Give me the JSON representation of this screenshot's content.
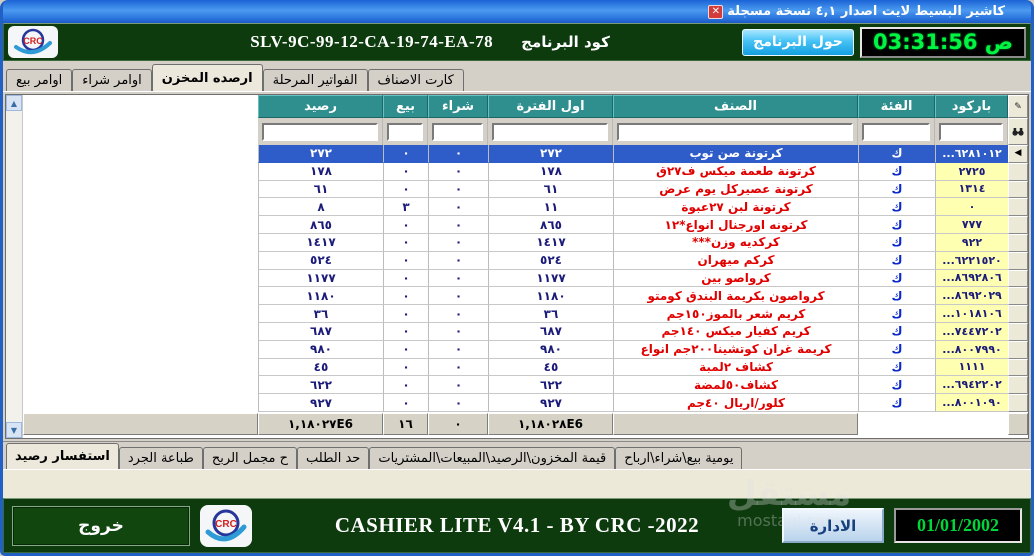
{
  "colors": {
    "titlebar_blue": "#2a74dc",
    "header_green": "#0d3b0e",
    "column_teal": "#2f8e8e",
    "selected_row_blue": "#2e5cc8",
    "item_text_red": "#e00000",
    "number_text_navy": "#1b1b7a",
    "barcode_cell_yellow": "#ffffb2",
    "clock_green": "#00f542",
    "date_green": "#00d53a"
  },
  "window": {
    "title": "كاشير البسيط لايت اصدار ٤,١  نسخة مسجلة",
    "close_icon": "✕"
  },
  "header": {
    "logo_text": "CRC",
    "code_value": "SLV-9C-99-12-CA-19-74-EA-78",
    "code_label": "كود البرنامج",
    "about_button": "حول البرنامج",
    "clock": "03:31:56 ص"
  },
  "tabs": {
    "items": [
      "اوامر بيع",
      "اوامر شراء",
      "ارصده المخزن",
      "الفواتير المرحلة",
      "كارت الاصناف"
    ],
    "active": "ارصده المخزن"
  },
  "grid": {
    "columns": [
      "باركود",
      "الفئة",
      "الصنف",
      "اول الفترة",
      "شراء",
      "بيع",
      "رصيد"
    ],
    "current_row_arrow": "◀",
    "rows": [
      {
        "barcode": "...٦٢٨١٠١٢",
        "category": "ك",
        "item": "كرتونة صن توب",
        "opening": "٢٧٢",
        "purchase": "٠",
        "sale": "٠",
        "balance": "٢٧٢",
        "selected": true
      },
      {
        "barcode": "٢٧٢٥",
        "category": "ك",
        "item": "كرتونة طعمة ميكس ف٢٧ق",
        "opening": "١٧٨",
        "purchase": "٠",
        "sale": "٠",
        "balance": "١٧٨",
        "selected": false
      },
      {
        "barcode": "١٣١٤",
        "category": "ك",
        "item": "كرتونة عصيركل يوم عرض",
        "opening": "٦١",
        "purchase": "٠",
        "sale": "٠",
        "balance": "٦١",
        "selected": false
      },
      {
        "barcode": "٠",
        "category": "ك",
        "item": "كرتونة لبن ٢٧عبوة",
        "opening": "١١",
        "purchase": "٠",
        "sale": "٣",
        "balance": "٨",
        "selected": false
      },
      {
        "barcode": "٧٧٧",
        "category": "ك",
        "item": "كرتونه اورجنال انواع*١٢",
        "opening": "٨٦٥",
        "purchase": "٠",
        "sale": "٠",
        "balance": "٨٦٥",
        "selected": false
      },
      {
        "barcode": "٩٢٢",
        "category": "ك",
        "item": "كركديه وزن***",
        "opening": "١٤١٧",
        "purchase": "٠",
        "sale": "٠",
        "balance": "١٤١٧",
        "selected": false
      },
      {
        "barcode": "...٦٢٢١٥٢٠",
        "category": "ك",
        "item": "كركم ميهران",
        "opening": "٥٢٤",
        "purchase": "٠",
        "sale": "٠",
        "balance": "٥٢٤",
        "selected": false
      },
      {
        "barcode": "...٨٦٩٢٨٠٦",
        "category": "ك",
        "item": "كرواصو بين",
        "opening": "١١٧٧",
        "purchase": "٠",
        "sale": "٠",
        "balance": "١١٧٧",
        "selected": false
      },
      {
        "barcode": "...٨٦٩٢٠٢٩",
        "category": "ك",
        "item": "كرواصون بكريمة البندق كومتو",
        "opening": "١١٨٠",
        "purchase": "٠",
        "sale": "٠",
        "balance": "١١٨٠",
        "selected": false
      },
      {
        "barcode": "...١٠١٨١٠٦",
        "category": "ك",
        "item": "كريم شعر بالموز١٥٠جم",
        "opening": "٣٦",
        "purchase": "٠",
        "sale": "٠",
        "balance": "٣٦",
        "selected": false
      },
      {
        "barcode": "...٧٤٤٧٢٠٢",
        "category": "ك",
        "item": "كريم كفيار ميكس ١٤٠جم",
        "opening": "٦٨٧",
        "purchase": "٠",
        "sale": "٠",
        "balance": "٦٨٧",
        "selected": false
      },
      {
        "barcode": "...٨٠٠٧٩٩٠",
        "category": "ك",
        "item": "كريمة غران كوتشينا٢٠٠جم انواع",
        "opening": "٩٨٠",
        "purchase": "٠",
        "sale": "٠",
        "balance": "٩٨٠",
        "selected": false
      },
      {
        "barcode": "١١١١",
        "category": "ك",
        "item": "كشاف ٢لمبة",
        "opening": "٤٥",
        "purchase": "٠",
        "sale": "٠",
        "balance": "٤٥",
        "selected": false
      },
      {
        "barcode": "...٦٩٤٢٢٠٢",
        "category": "ك",
        "item": "كشاف٥٠لمضة",
        "opening": "٦٢٢",
        "purchase": "٠",
        "sale": "٠",
        "balance": "٦٢٢",
        "selected": false
      },
      {
        "barcode": "...٨٠٠١٠٩٠",
        "category": "ك",
        "item": "كلور/اريال ٤٠جم",
        "opening": "٩٢٧",
        "purchase": "٠",
        "sale": "٠",
        "balance": "٩٢٧",
        "selected": false
      }
    ],
    "totals": {
      "opening": "١,١٨٠٢٨E6",
      "purchase": "٠",
      "sale": "١٦",
      "balance": "١,١٨٠٢٧E6"
    }
  },
  "bottom_tabs": {
    "items": [
      "استفسار رصيد",
      "طباعة الجرد",
      "ح مجمل الربح",
      "حد الطلب",
      "قيمة المخزون\\الرصيد\\المبيعات\\المشتريات",
      "يومية بيع\\شراء\\ارباح"
    ],
    "active": "استفسار رصيد"
  },
  "footer": {
    "exit_button": "خروج",
    "logo_text": "CRC",
    "app_title": "CASHIER LITE  V4.1 - BY CRC -2022",
    "admin_button": "الادارة",
    "date": "01/01/2002",
    "watermark_ar": "مستقل",
    "watermark_en": "mostaql.com"
  }
}
